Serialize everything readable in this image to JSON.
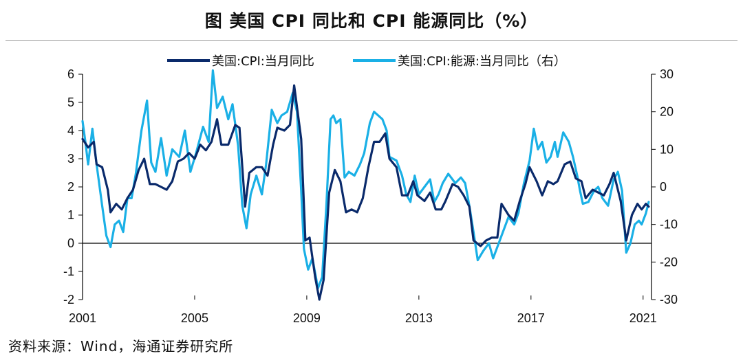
{
  "title": "图  美国 CPI 同比和 CPI 能源同比（%）",
  "source": "资料来源：Wind，海通证券研究所",
  "colors": {
    "cpi": "#0a2a6b",
    "energy": "#1ab0e6",
    "axis": "#000000"
  },
  "chart_data": {
    "type": "line",
    "title": "图  美国 CPI 同比和 CPI 能源同比（%）",
    "legend_position": "top-center",
    "x_ticks": [
      "2001",
      "2005",
      "2009",
      "2013",
      "2017",
      "2021"
    ],
    "x_range": [
      2001.0,
      2021.3
    ],
    "y_left": {
      "range": [
        -2,
        6
      ],
      "ticks": [
        "6",
        "5",
        "4",
        "3",
        "2",
        "1",
        "0",
        "-1",
        "-2"
      ]
    },
    "y_right": {
      "range": [
        -30,
        30
      ],
      "ticks": [
        "30",
        "20",
        "10",
        "0",
        "-10",
        "-20",
        "-30"
      ]
    },
    "series": [
      {
        "name": "美国:CPI:当月同比",
        "axis": "left",
        "points": [
          [
            2001.0,
            3.7
          ],
          [
            2001.2,
            3.4
          ],
          [
            2001.4,
            3.6
          ],
          [
            2001.5,
            2.8
          ],
          [
            2001.7,
            2.7
          ],
          [
            2001.9,
            1.9
          ],
          [
            2002.0,
            1.1
          ],
          [
            2002.2,
            1.4
          ],
          [
            2002.4,
            1.2
          ],
          [
            2002.6,
            1.6
          ],
          [
            2002.8,
            1.9
          ],
          [
            2003.0,
            2.6
          ],
          [
            2003.2,
            3.0
          ],
          [
            2003.4,
            2.1
          ],
          [
            2003.6,
            2.1
          ],
          [
            2003.8,
            2.0
          ],
          [
            2004.0,
            1.9
          ],
          [
            2004.2,
            2.2
          ],
          [
            2004.4,
            2.9
          ],
          [
            2004.6,
            3.0
          ],
          [
            2004.8,
            3.2
          ],
          [
            2005.0,
            3.0
          ],
          [
            2005.2,
            3.5
          ],
          [
            2005.4,
            3.3
          ],
          [
            2005.6,
            3.6
          ],
          [
            2005.8,
            4.4
          ],
          [
            2005.95,
            3.5
          ],
          [
            2006.2,
            3.5
          ],
          [
            2006.45,
            4.2
          ],
          [
            2006.6,
            4.1
          ],
          [
            2006.8,
            1.3
          ],
          [
            2006.95,
            2.5
          ],
          [
            2007.2,
            2.7
          ],
          [
            2007.4,
            2.7
          ],
          [
            2007.6,
            2.4
          ],
          [
            2007.8,
            3.5
          ],
          [
            2007.95,
            4.1
          ],
          [
            2008.2,
            4.0
          ],
          [
            2008.4,
            4.2
          ],
          [
            2008.55,
            5.6
          ],
          [
            2008.8,
            3.7
          ],
          [
            2008.95,
            0.1
          ],
          [
            2009.1,
            0.2
          ],
          [
            2009.3,
            -1.2
          ],
          [
            2009.45,
            -2.0
          ],
          [
            2009.6,
            -1.3
          ],
          [
            2009.8,
            1.8
          ],
          [
            2010.0,
            2.6
          ],
          [
            2010.2,
            2.2
          ],
          [
            2010.4,
            1.1
          ],
          [
            2010.6,
            1.2
          ],
          [
            2010.8,
            1.1
          ],
          [
            2011.0,
            1.6
          ],
          [
            2011.2,
            2.7
          ],
          [
            2011.4,
            3.6
          ],
          [
            2011.6,
            3.6
          ],
          [
            2011.8,
            3.9
          ],
          [
            2011.95,
            3.0
          ],
          [
            2012.2,
            2.7
          ],
          [
            2012.4,
            1.7
          ],
          [
            2012.6,
            1.7
          ],
          [
            2012.8,
            2.2
          ],
          [
            2012.95,
            1.7
          ],
          [
            2013.2,
            1.5
          ],
          [
            2013.4,
            1.8
          ],
          [
            2013.6,
            1.2
          ],
          [
            2013.8,
            1.2
          ],
          [
            2013.95,
            1.5
          ],
          [
            2014.2,
            2.1
          ],
          [
            2014.4,
            2.0
          ],
          [
            2014.6,
            1.7
          ],
          [
            2014.8,
            1.3
          ],
          [
            2014.95,
            0.1
          ],
          [
            2015.2,
            -0.1
          ],
          [
            2015.4,
            0.1
          ],
          [
            2015.6,
            0.2
          ],
          [
            2015.8,
            0.2
          ],
          [
            2015.95,
            1.4
          ],
          [
            2016.2,
            1.0
          ],
          [
            2016.4,
            0.8
          ],
          [
            2016.6,
            1.5
          ],
          [
            2016.8,
            2.1
          ],
          [
            2016.95,
            2.7
          ],
          [
            2017.2,
            2.2
          ],
          [
            2017.4,
            1.7
          ],
          [
            2017.6,
            2.2
          ],
          [
            2017.8,
            2.1
          ],
          [
            2017.95,
            2.2
          ],
          [
            2018.2,
            2.8
          ],
          [
            2018.4,
            2.9
          ],
          [
            2018.6,
            2.3
          ],
          [
            2018.8,
            2.2
          ],
          [
            2018.95,
            1.6
          ],
          [
            2019.2,
            1.9
          ],
          [
            2019.4,
            1.8
          ],
          [
            2019.6,
            1.7
          ],
          [
            2019.8,
            2.1
          ],
          [
            2019.95,
            2.5
          ],
          [
            2020.2,
            1.5
          ],
          [
            2020.4,
            0.1
          ],
          [
            2020.6,
            1.0
          ],
          [
            2020.8,
            1.4
          ],
          [
            2020.95,
            1.2
          ],
          [
            2021.1,
            1.4
          ],
          [
            2021.2,
            1.3
          ]
        ]
      },
      {
        "name": "美国:CPI:能源:当月同比（右）",
        "axis": "right",
        "points": [
          [
            2001.0,
            17.5
          ],
          [
            2001.1,
            12
          ],
          [
            2001.2,
            6
          ],
          [
            2001.35,
            15.5
          ],
          [
            2001.5,
            6
          ],
          [
            2001.7,
            -5
          ],
          [
            2001.85,
            -13
          ],
          [
            2002.0,
            -16
          ],
          [
            2002.15,
            -10
          ],
          [
            2002.3,
            -9
          ],
          [
            2002.45,
            -12
          ],
          [
            2002.6,
            -3
          ],
          [
            2002.75,
            -3
          ],
          [
            2002.9,
            3.5
          ],
          [
            2003.1,
            15
          ],
          [
            2003.3,
            23
          ],
          [
            2003.45,
            6.5
          ],
          [
            2003.6,
            4
          ],
          [
            2003.8,
            13
          ],
          [
            2004.0,
            3
          ],
          [
            2004.2,
            10
          ],
          [
            2004.45,
            8
          ],
          [
            2004.65,
            15
          ],
          [
            2004.85,
            4
          ],
          [
            2005.05,
            9
          ],
          [
            2005.3,
            16
          ],
          [
            2005.5,
            12
          ],
          [
            2005.65,
            31
          ],
          [
            2005.8,
            21
          ],
          [
            2006.0,
            24
          ],
          [
            2006.2,
            18
          ],
          [
            2006.35,
            22
          ],
          [
            2006.55,
            11
          ],
          [
            2006.7,
            -5
          ],
          [
            2006.85,
            -11
          ],
          [
            2007.0,
            -2
          ],
          [
            2007.2,
            3
          ],
          [
            2007.4,
            -2
          ],
          [
            2007.55,
            6
          ],
          [
            2007.75,
            20.5
          ],
          [
            2007.95,
            17
          ],
          [
            2008.1,
            19
          ],
          [
            2008.3,
            20
          ],
          [
            2008.5,
            25
          ],
          [
            2008.65,
            20
          ],
          [
            2008.8,
            -1
          ],
          [
            2008.9,
            -16.5
          ],
          [
            2009.05,
            -22
          ],
          [
            2009.2,
            -19
          ],
          [
            2009.4,
            -27
          ],
          [
            2009.55,
            -24
          ],
          [
            2009.7,
            -5
          ],
          [
            2009.85,
            18
          ],
          [
            2009.95,
            19
          ],
          [
            2010.05,
            17
          ],
          [
            2010.2,
            18
          ],
          [
            2010.35,
            2.5
          ],
          [
            2010.5,
            4
          ],
          [
            2010.7,
            3
          ],
          [
            2010.9,
            6
          ],
          [
            2011.05,
            9
          ],
          [
            2011.25,
            17
          ],
          [
            2011.4,
            20
          ],
          [
            2011.55,
            19
          ],
          [
            2011.7,
            18
          ],
          [
            2011.85,
            15
          ],
          [
            2011.95,
            8
          ],
          [
            2012.2,
            7
          ],
          [
            2012.4,
            3
          ],
          [
            2012.55,
            -2
          ],
          [
            2012.7,
            -4
          ],
          [
            2012.85,
            3
          ],
          [
            2013.0,
            -2
          ],
          [
            2013.2,
            0
          ],
          [
            2013.4,
            2
          ],
          [
            2013.55,
            -4
          ],
          [
            2013.7,
            -2
          ],
          [
            2013.85,
            1
          ],
          [
            2014.05,
            3.5
          ],
          [
            2014.3,
            1
          ],
          [
            2014.5,
            2.5
          ],
          [
            2014.65,
            1
          ],
          [
            2014.8,
            -5
          ],
          [
            2014.95,
            -12
          ],
          [
            2015.1,
            -19.5
          ],
          [
            2015.3,
            -17
          ],
          [
            2015.5,
            -15
          ],
          [
            2015.65,
            -19
          ],
          [
            2015.8,
            -16
          ],
          [
            2015.95,
            -13
          ],
          [
            2016.2,
            -8
          ],
          [
            2016.4,
            -10
          ],
          [
            2016.55,
            -7
          ],
          [
            2016.75,
            1
          ],
          [
            2016.95,
            7
          ],
          [
            2017.1,
            15.5
          ],
          [
            2017.25,
            10
          ],
          [
            2017.4,
            12
          ],
          [
            2017.55,
            6.5
          ],
          [
            2017.7,
            8
          ],
          [
            2017.85,
            12
          ],
          [
            2017.95,
            8
          ],
          [
            2018.15,
            14.5
          ],
          [
            2018.35,
            12
          ],
          [
            2018.5,
            8
          ],
          [
            2018.65,
            3
          ],
          [
            2018.75,
            -1
          ],
          [
            2018.85,
            -4.5
          ],
          [
            2019.05,
            -4
          ],
          [
            2019.25,
            -1
          ],
          [
            2019.4,
            0
          ],
          [
            2019.55,
            -3
          ],
          [
            2019.75,
            -5
          ],
          [
            2019.95,
            2
          ],
          [
            2020.1,
            4
          ],
          [
            2020.25,
            -1
          ],
          [
            2020.4,
            -17.5
          ],
          [
            2020.55,
            -15
          ],
          [
            2020.7,
            -10
          ],
          [
            2020.85,
            -9
          ],
          [
            2020.95,
            -10
          ],
          [
            2021.1,
            -7
          ],
          [
            2021.2,
            -4
          ]
        ]
      }
    ]
  }
}
